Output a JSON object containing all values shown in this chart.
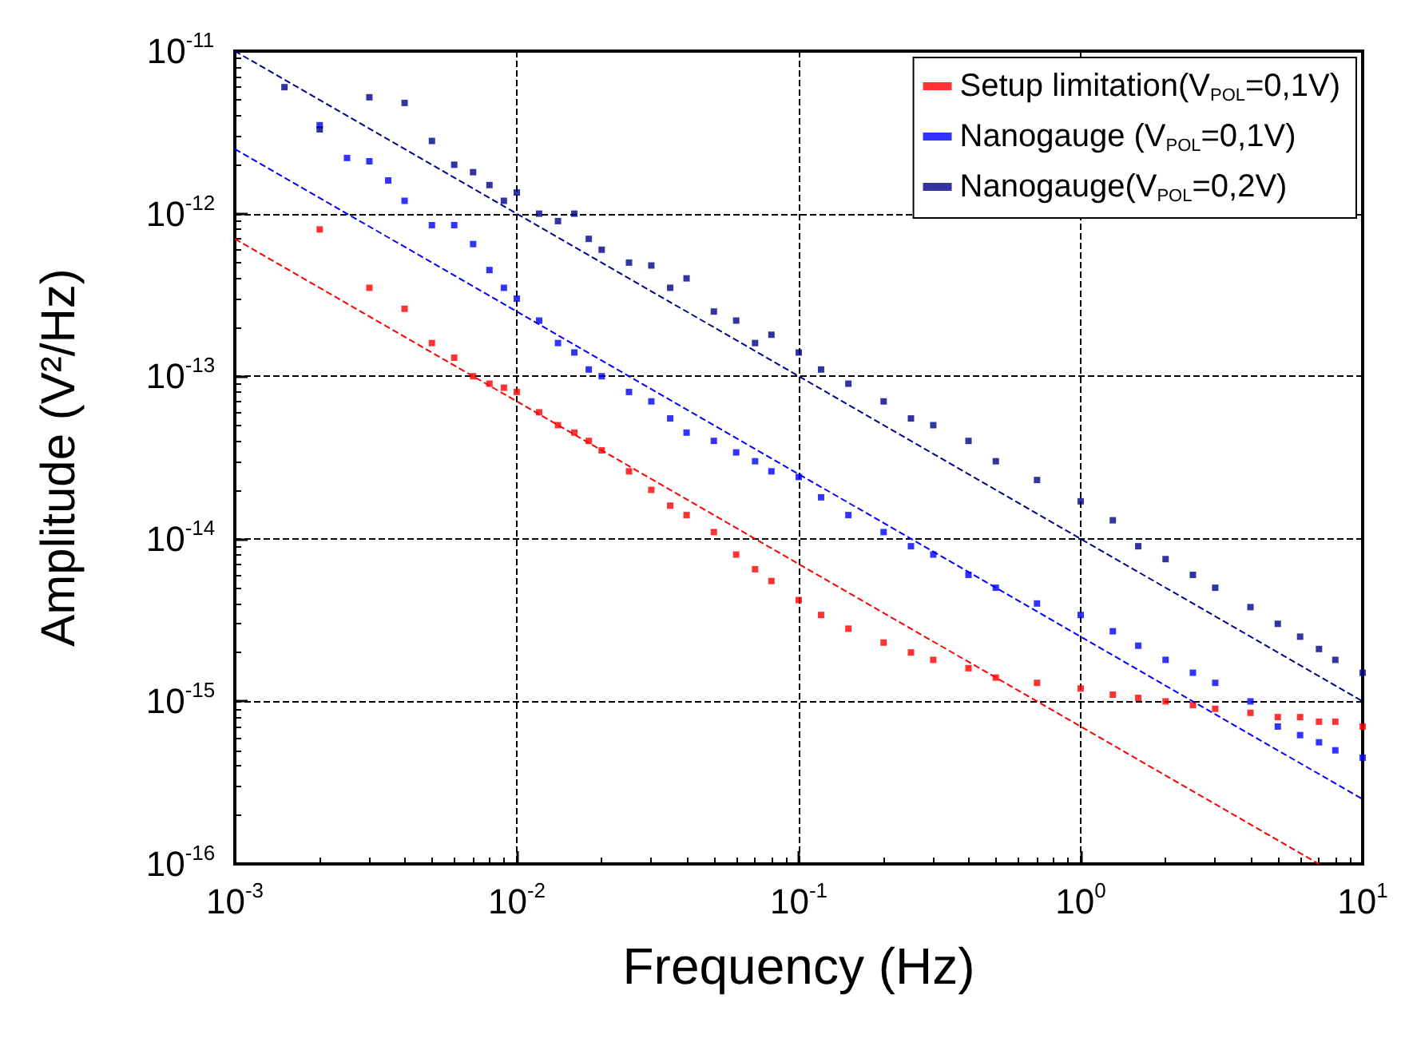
{
  "chart_data": {
    "type": "scatter",
    "xlabel": "Frequency (Hz)",
    "ylabel": "Amplitude (V²/Hz)",
    "log": "xy",
    "grid": true,
    "legend": "top right",
    "marker": "square",
    "xlim": [
      0.001,
      10
    ],
    "ylim": [
      1e-16,
      1e-11
    ],
    "xticks": [
      {
        "value": 0.001,
        "label": "10$^{-3}$"
      },
      {
        "value": 0.01,
        "label": "10$^{-2}$"
      },
      {
        "value": 0.1,
        "label": "10$^{-1}$"
      },
      {
        "value": 1,
        "label": "10$^{0}$"
      },
      {
        "value": 10,
        "label": "10$^{1}$"
      }
    ],
    "yticks": [
      {
        "value": 1e-16,
        "label": "10$^{-16}$"
      },
      {
        "value": 1e-15,
        "label": "10$^{-15}$"
      },
      {
        "value": 1e-14,
        "label": "10$^{-14}$"
      },
      {
        "value": 1e-13,
        "label": "10$^{-13}$"
      },
      {
        "value": 1e-12,
        "label": "10$^{-12}$"
      },
      {
        "value": 1e-11,
        "label": "10$^{-11}$"
      }
    ],
    "series": [
      {
        "name": "Setup limitation(V$_{POL}$=0,1V)",
        "color": "#ff0000",
        "x": [
          0.002,
          0.003,
          0.004,
          0.005,
          0.006,
          0.007,
          0.008,
          0.009,
          0.01,
          0.012,
          0.014,
          0.016,
          0.018,
          0.02,
          0.025,
          0.03,
          0.035,
          0.04,
          0.05,
          0.06,
          0.07,
          0.08,
          0.1,
          0.12,
          0.15,
          0.2,
          0.25,
          0.3,
          0.4,
          0.5,
          0.7,
          1,
          1.3,
          1.6,
          2,
          2.5,
          3,
          4,
          5,
          6,
          7,
          8,
          10
        ],
        "values": [
          8e-13,
          3.5e-13,
          2.6e-13,
          1.6e-13,
          1.3e-13,
          1e-13,
          9e-14,
          8.5e-14,
          8e-14,
          6e-14,
          5e-14,
          4.5e-14,
          4e-14,
          3.5e-14,
          2.6e-14,
          2e-14,
          1.6e-14,
          1.4e-14,
          1.1e-14,
          8e-15,
          6.5e-15,
          5.5e-15,
          4.2e-15,
          3.4e-15,
          2.8e-15,
          2.3e-15,
          2e-15,
          1.8e-15,
          1.6e-15,
          1.4e-15,
          1.3e-15,
          1.2e-15,
          1.1e-15,
          1.05e-15,
          1e-15,
          9.5e-16,
          9e-16,
          8.5e-16,
          8e-16,
          8e-16,
          7.5e-16,
          7.5e-16,
          7e-16
        ]
      },
      {
        "name": "Nanogauge (V$_{POL}$=0,1V)",
        "color": "#0000ff",
        "x": [
          0.002,
          0.0025,
          0.003,
          0.0035,
          0.004,
          0.005,
          0.006,
          0.007,
          0.008,
          0.009,
          0.01,
          0.012,
          0.014,
          0.016,
          0.018,
          0.02,
          0.025,
          0.03,
          0.035,
          0.04,
          0.05,
          0.06,
          0.07,
          0.08,
          0.1,
          0.12,
          0.15,
          0.2,
          0.25,
          0.3,
          0.4,
          0.5,
          0.7,
          1,
          1.3,
          1.6,
          2,
          2.5,
          3,
          4,
          5,
          6,
          7,
          8,
          10
        ],
        "values": [
          3.5e-12,
          2.2e-12,
          2.1e-12,
          1.6e-12,
          1.2e-12,
          8.5e-13,
          8.5e-13,
          6.5e-13,
          4.5e-13,
          3.5e-13,
          3e-13,
          2.2e-13,
          1.6e-13,
          1.4e-13,
          1.1e-13,
          1e-13,
          8e-14,
          7e-14,
          5.5e-14,
          4.5e-14,
          4e-14,
          3.4e-14,
          3e-14,
          2.6e-14,
          2.4e-14,
          1.8e-14,
          1.4e-14,
          1.1e-14,
          9e-15,
          8e-15,
          6e-15,
          5e-15,
          4e-15,
          3.4e-15,
          2.7e-15,
          2.2e-15,
          1.8e-15,
          1.5e-15,
          1.3e-15,
          1e-15,
          7e-16,
          6.2e-16,
          5.6e-16,
          5e-16,
          4.5e-16
        ]
      },
      {
        "name": "Nanogauge(V$_{POL}$=0,2V)",
        "color": "#00008b",
        "x": [
          0.0015,
          0.002,
          0.003,
          0.004,
          0.005,
          0.006,
          0.007,
          0.008,
          0.009,
          0.01,
          0.012,
          0.014,
          0.016,
          0.018,
          0.02,
          0.025,
          0.03,
          0.035,
          0.04,
          0.05,
          0.06,
          0.07,
          0.08,
          0.1,
          0.12,
          0.15,
          0.2,
          0.25,
          0.3,
          0.4,
          0.5,
          0.7,
          1,
          1.3,
          1.6,
          2,
          2.5,
          3,
          4,
          5,
          6,
          7,
          8,
          10
        ],
        "values": [
          6e-12,
          3.3e-12,
          5.2e-12,
          4.8e-12,
          2.8e-12,
          2e-12,
          1.8e-12,
          1.5e-12,
          1.2e-12,
          1.35e-12,
          1e-12,
          9e-13,
          1e-12,
          7e-13,
          6e-13,
          5e-13,
          4.8e-13,
          3.5e-13,
          4e-13,
          2.5e-13,
          2.2e-13,
          1.6e-13,
          1.8e-13,
          1.4e-13,
          1.1e-13,
          9e-14,
          7e-14,
          5.5e-14,
          5e-14,
          4e-14,
          3e-14,
          2.3e-14,
          1.7e-14,
          1.3e-14,
          9e-15,
          7.5e-15,
          6e-15,
          5e-15,
          3.8e-15,
          3e-15,
          2.5e-15,
          2.1e-15,
          1.8e-15,
          1.5e-15
        ]
      },
      {
        "type": "line",
        "color": "#ff0000",
        "line_style": "dashed",
        "marker": "none",
        "x": [
          0.001,
          7
        ],
        "values": [
          7e-13,
          1e-16
        ]
      },
      {
        "type": "line",
        "color": "#0000ff",
        "line_style": "dashed",
        "marker": "none",
        "x": [
          0.001,
          10
        ],
        "values": [
          2.5e-12,
          2.5e-16
        ]
      },
      {
        "type": "line",
        "color": "#00008b",
        "line_style": "dashed",
        "marker": "none",
        "x": [
          0.001,
          10
        ],
        "values": [
          1e-11,
          1e-15
        ]
      }
    ]
  }
}
